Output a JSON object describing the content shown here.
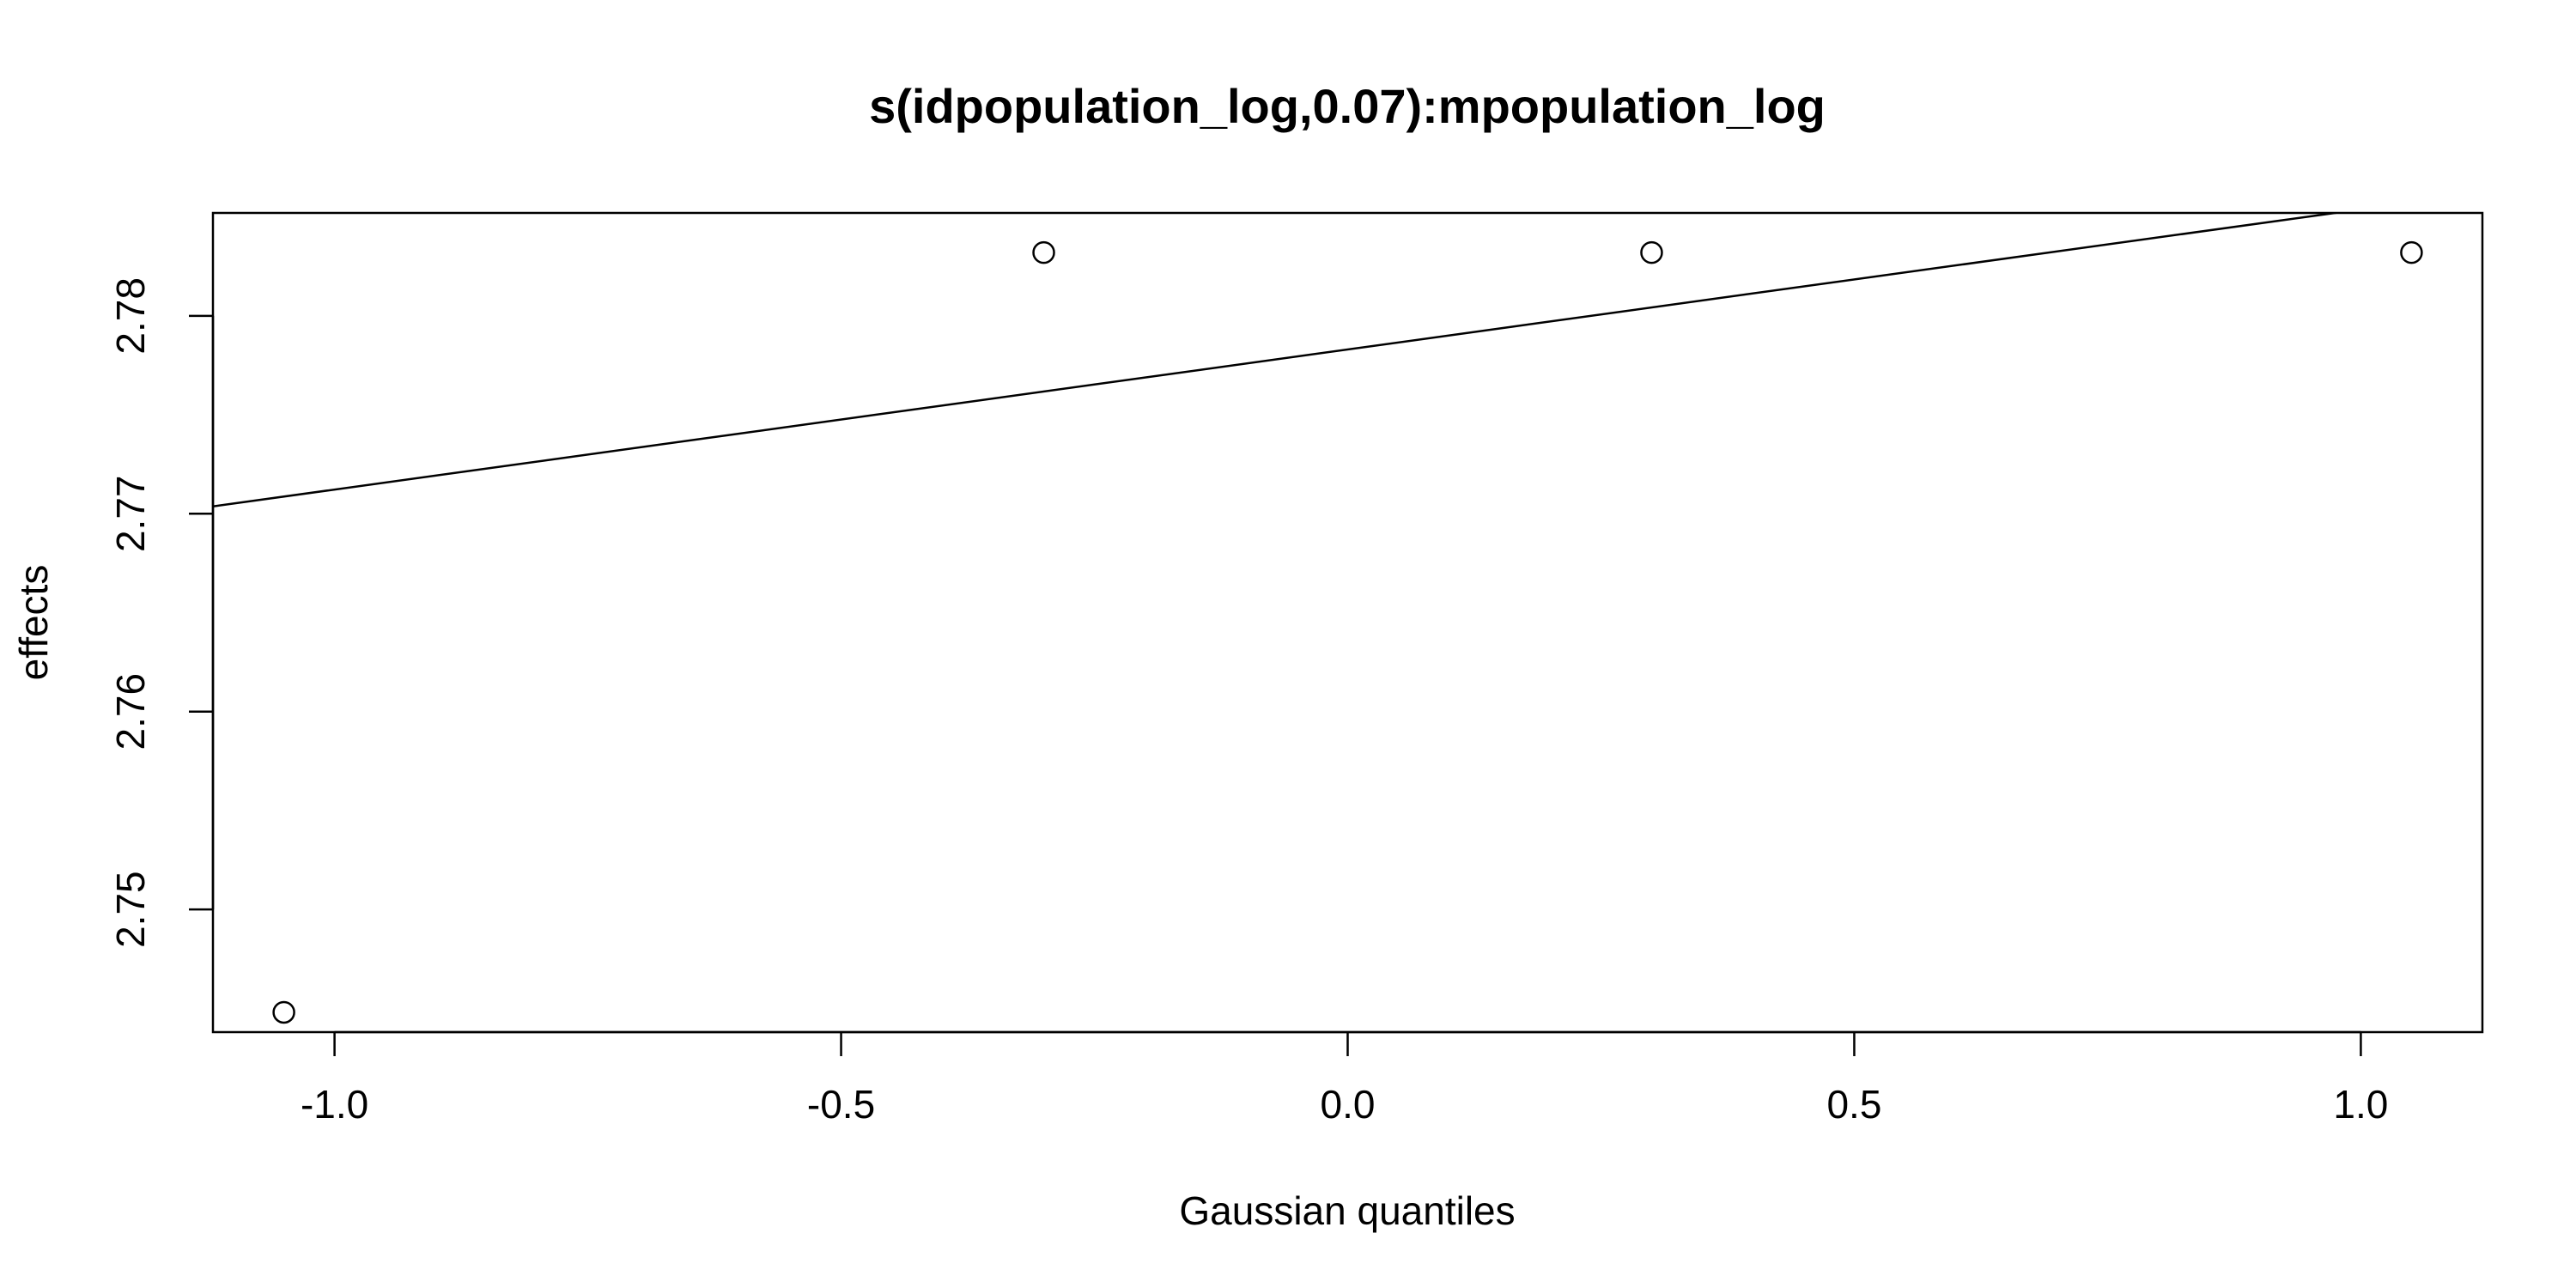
{
  "chart_data": {
    "type": "scatter",
    "title": "s(idpopulation_log,0.07):mpopulation_log",
    "xlabel": "Gaussian quantiles",
    "ylabel": "effects",
    "xlim": [
      -1.12,
      1.12
    ],
    "ylim": [
      2.7438,
      2.7852
    ],
    "x_ticks": [
      -1.0,
      -0.5,
      0.0,
      0.5,
      1.0
    ],
    "x_tick_labels": [
      "-1.0",
      "-0.5",
      "0.0",
      "0.5",
      "1.0"
    ],
    "y_ticks": [
      2.75,
      2.76,
      2.77,
      2.78
    ],
    "y_tick_labels": [
      "2.75",
      "2.76",
      "2.77",
      "2.78"
    ],
    "points": [
      {
        "x": -1.05,
        "y": 2.7448
      },
      {
        "x": -0.3,
        "y": 2.7832
      },
      {
        "x": 0.3,
        "y": 2.7832
      },
      {
        "x": 1.05,
        "y": 2.7832
      }
    ],
    "reference_line": {
      "intercept": 2.7783,
      "slope": 0.00708
    },
    "grid": false,
    "legend": "none"
  }
}
